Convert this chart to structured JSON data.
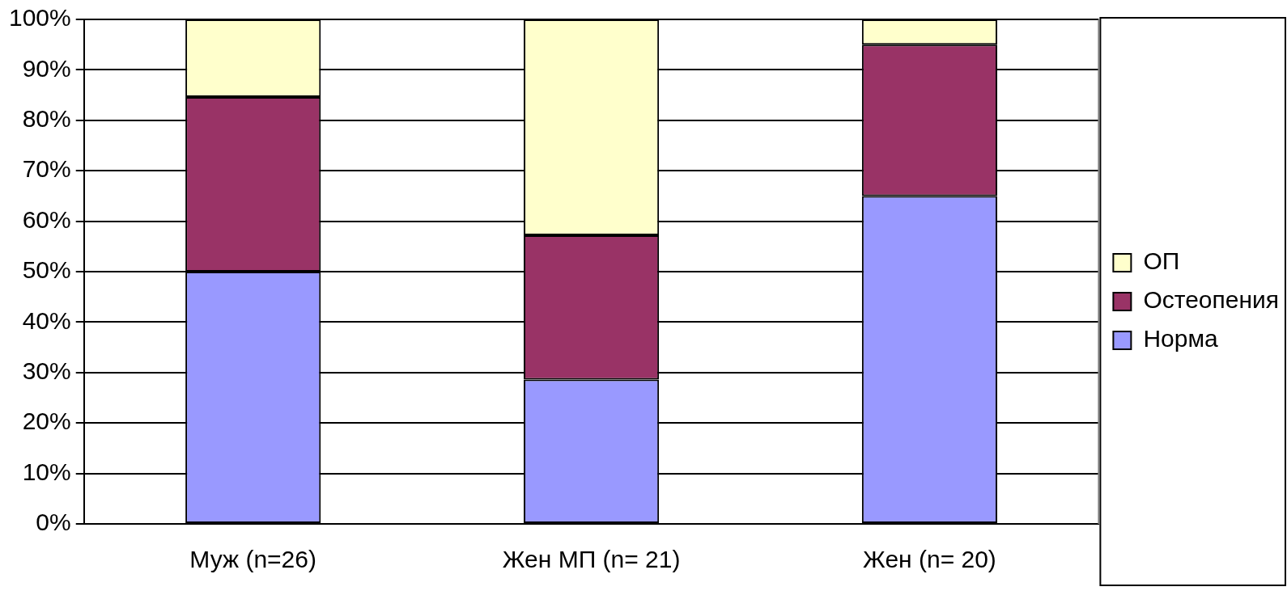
{
  "chart_data": {
    "type": "bar",
    "stacked": true,
    "categories": [
      "Муж (n=26)",
      "Жен МП (n= 21)",
      "Жен (n= 20)"
    ],
    "series": [
      {
        "name": "Норма",
        "color": "#9999ff",
        "values": [
          50,
          28.6,
          65
        ]
      },
      {
        "name": "Остеопения",
        "color": "#993366",
        "values": [
          34.6,
          28.6,
          30
        ]
      },
      {
        "name": "ОП",
        "color": "#ffffcc",
        "values": [
          15.4,
          42.8,
          5
        ]
      }
    ],
    "ylim": [
      0,
      100
    ],
    "yticks": [
      {
        "value": 0,
        "label": "0%"
      },
      {
        "value": 10,
        "label": "10%"
      },
      {
        "value": 20,
        "label": "20%"
      },
      {
        "value": 30,
        "label": "30%"
      },
      {
        "value": 40,
        "label": "40%"
      },
      {
        "value": 50,
        "label": "50%"
      },
      {
        "value": 60,
        "label": "60%"
      },
      {
        "value": 70,
        "label": "70%"
      },
      {
        "value": 80,
        "label": "80%"
      },
      {
        "value": 90,
        "label": "90%"
      },
      {
        "value": 100,
        "label": "100%"
      }
    ],
    "grid": "y",
    "legend": "right"
  }
}
